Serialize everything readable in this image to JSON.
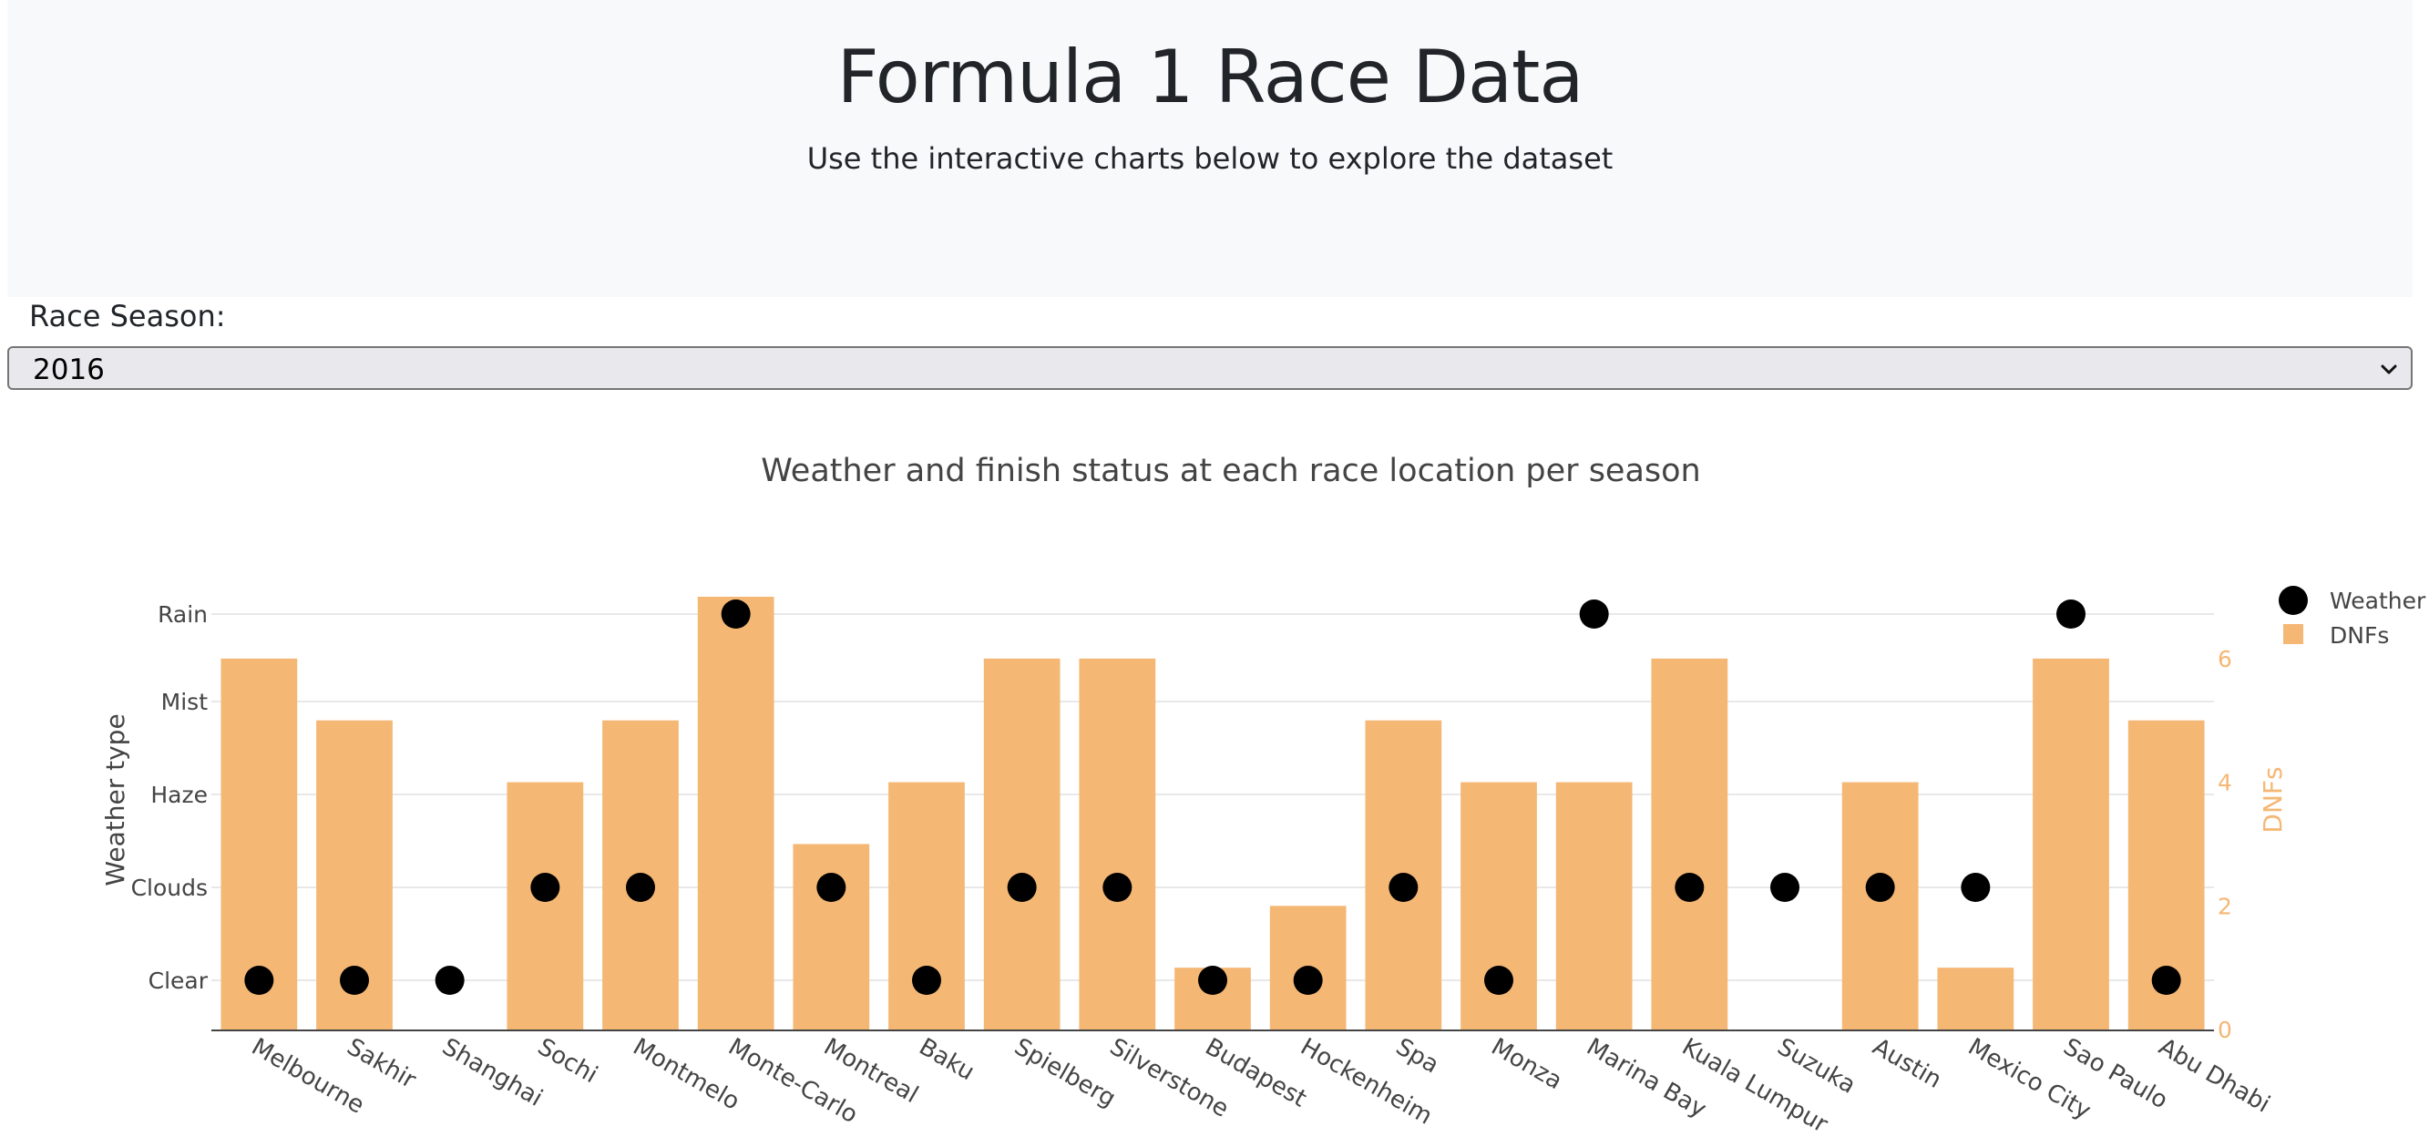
{
  "header": {
    "title": "Formula 1 Race Data",
    "subtitle": "Use the interactive charts below to explore the dataset"
  },
  "season_filter": {
    "label": "Race Season:",
    "selected": "2016",
    "icon": "chevron-down-icon"
  },
  "colors": {
    "bar": "#f5b774",
    "marker": "#000000",
    "dnf_axis": "#f5b774",
    "hero_background": "#f8f9fa"
  },
  "chart_data": {
    "type": "bar",
    "title": "Weather and finish status at each race location per season",
    "categories": [
      "Melbourne",
      "Sakhir",
      "Shanghai",
      "Sochi",
      "Montmelo",
      "Monte-Carlo",
      "Montreal",
      "Baku",
      "Spielberg",
      "Silverstone",
      "Budapest",
      "Hockenheim",
      "Spa",
      "Monza",
      "Marina Bay",
      "Kuala Lumpur",
      "Suzuka",
      "Austin",
      "Mexico City",
      "Sao Paulo",
      "Abu Dhabi"
    ],
    "series": [
      {
        "name": "DNFs",
        "type": "bar",
        "axis": "right",
        "values": [
          6,
          5,
          0,
          4,
          5,
          7,
          3,
          4,
          6,
          6,
          1,
          2,
          5,
          4,
          4,
          6,
          0,
          4,
          1,
          6,
          5
        ]
      },
      {
        "name": "Weather",
        "type": "scatter",
        "axis": "left",
        "values": [
          "Clear",
          "Clear",
          "Clear",
          "Clouds",
          "Clouds",
          "Rain",
          "Clouds",
          "Clear",
          "Clouds",
          "Clouds",
          "Clear",
          "Clear",
          "Clouds",
          "Clear",
          "Rain",
          "Clouds",
          "Clouds",
          "Clouds",
          "Clouds",
          "Rain",
          "Clear"
        ]
      }
    ],
    "ylabel": "Weather type",
    "y_categories": [
      "Clear",
      "Clouds",
      "Haze",
      "Mist",
      "Rain"
    ],
    "y2label": "DNFs",
    "y2lim": [
      0,
      7
    ],
    "y2ticks": [
      0,
      2,
      4,
      6
    ],
    "legend": [
      "Weather",
      "DNFs"
    ],
    "legend_position": "top-right",
    "grid": true
  }
}
